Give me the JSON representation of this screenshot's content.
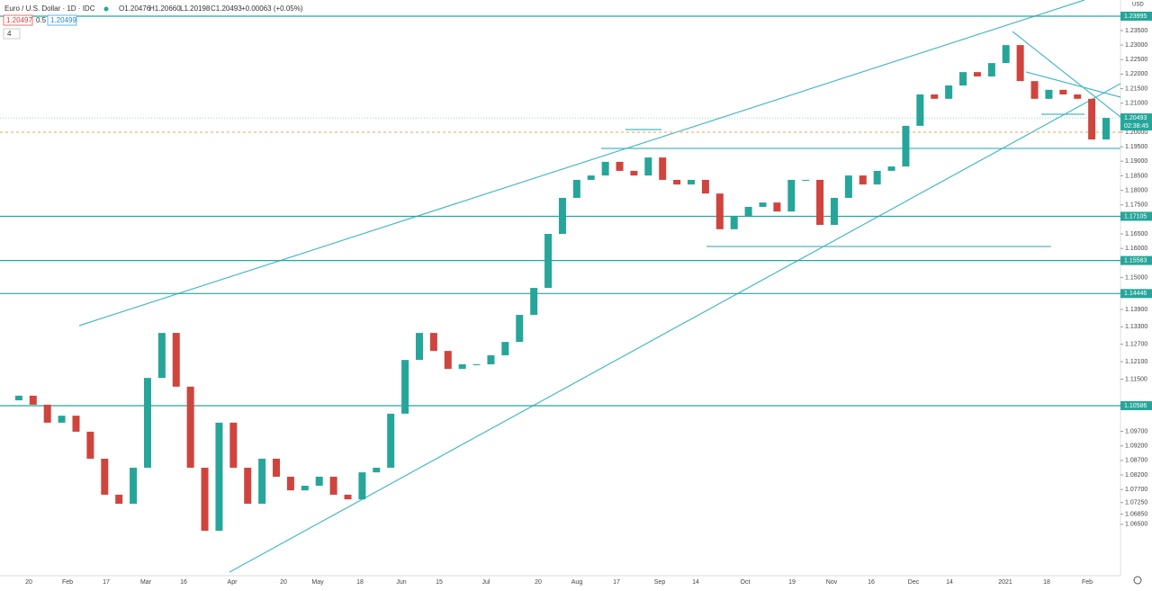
{
  "header": {
    "symbol": "Euro / U.S. Dollar · 1D · IDC",
    "open": "O1.20476",
    "high": "H1.20660",
    "low": "L1.20198",
    "close": "C1.20493",
    "change": "+0.00063 (+0.05%)",
    "badges": [
      "1.20497",
      "0.5",
      "1.20499"
    ],
    "collapse": "4"
  },
  "chart_data": {
    "type": "candle",
    "currency": "USD",
    "ylim": [
      1.04577,
      1.24552
    ],
    "yticks": [
      {
        "value": 1.235,
        "label": "1.23500"
      },
      {
        "value": 1.23,
        "label": "1.23000"
      },
      {
        "value": 1.225,
        "label": "1.22500"
      },
      {
        "value": 1.22,
        "label": "1.22000"
      },
      {
        "value": 1.215,
        "label": "1.21500"
      },
      {
        "value": 1.21,
        "label": "1.21000"
      },
      {
        "value": 1.2,
        "label": "1.20000"
      },
      {
        "value": 1.195,
        "label": "1.19500"
      },
      {
        "value": 1.19,
        "label": "1.19000"
      },
      {
        "value": 1.185,
        "label": "1.18500"
      },
      {
        "value": 1.18,
        "label": "1.18000"
      },
      {
        "value": 1.175,
        "label": "1.17500"
      },
      {
        "value": 1.165,
        "label": "1.16500"
      },
      {
        "value": 1.16,
        "label": "1.16000"
      },
      {
        "value": 1.15,
        "label": "1.15000"
      },
      {
        "value": 1.139,
        "label": "1.13900"
      },
      {
        "value": 1.133,
        "label": "1.13300"
      },
      {
        "value": 1.127,
        "label": "1.12700"
      },
      {
        "value": 1.121,
        "label": "1.12100"
      },
      {
        "value": 1.115,
        "label": "1.11500"
      },
      {
        "value": 1.097,
        "label": "1.09700"
      },
      {
        "value": 1.092,
        "label": "1.09200"
      },
      {
        "value": 1.087,
        "label": "1.08700"
      },
      {
        "value": 1.082,
        "label": "1.08200"
      },
      {
        "value": 1.077,
        "label": "1.07700"
      },
      {
        "value": 1.0725,
        "label": "1.07250"
      },
      {
        "value": 1.0685,
        "label": "1.06850"
      },
      {
        "value": 1.065,
        "label": "1.06500"
      }
    ],
    "x_labels": [
      "20",
      "Feb",
      "17",
      "Mar",
      "16",
      "Apr",
      "20",
      "May",
      "18",
      "Jun",
      "15",
      "Jul",
      "20",
      "Aug",
      "17",
      "Sep",
      "14",
      "Oct",
      "19",
      "Nov",
      "16",
      "Dec",
      "14",
      "2021",
      "18",
      "Feb"
    ],
    "up_color": "#26a69a",
    "down_color": "#d0443e",
    "closes": [
      1.1077,
      1.1093,
      1.1062,
      1.1,
      1.1024,
      1.0969,
      1.0876,
      1.0752,
      1.0721,
      1.0845,
      1.1154,
      1.1309,
      1.1124,
      1.0845,
      1.0628,
      1.1,
      1.0845,
      1.0721,
      1.0876,
      1.0814,
      1.0767,
      1.0783,
      1.0814,
      1.0752,
      1.0736,
      1.0829,
      1.0845,
      1.1031,
      1.1216,
      1.1309,
      1.1247,
      1.1185,
      1.1201,
      1.1201,
      1.1232,
      1.1278,
      1.1371,
      1.1464,
      1.165,
      1.1774,
      1.1836,
      1.1851,
      1.1898,
      1.1867,
      1.1851,
      1.1913,
      1.1836,
      1.182,
      1.1836,
      1.1789,
      1.1666,
      1.1712,
      1.1743,
      1.1758,
      1.1727,
      1.1836,
      1.1836,
      1.1681,
      1.1774,
      1.1851,
      1.182,
      1.1867,
      1.1882,
      1.2022,
      1.213,
      1.2115,
      1.2161,
      1.2207,
      1.2192,
      1.2238,
      1.23,
      1.2176,
      1.2115,
      1.2146,
      1.213,
      1.2115,
      1.1975,
      1.20493
    ],
    "levels": [
      1.23995,
      1.17105,
      1.15583,
      1.14446,
      1.10586
    ],
    "level_color": "#26a69a",
    "last_price": 1.20493,
    "countdown": "02:38:45"
  }
}
